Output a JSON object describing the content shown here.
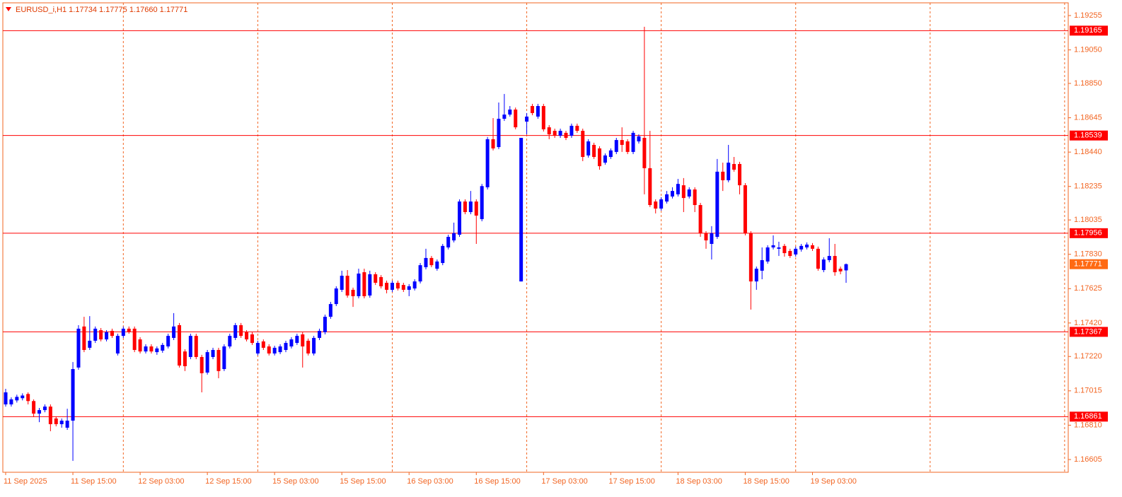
{
  "chart_data": {
    "type": "candlestick",
    "title": "EURUSD_i,H1  1.17734 1.17775 1.17660 1.17771",
    "categories": [
      "11 Sep 2025",
      null,
      null,
      null,
      null,
      null,
      null,
      null,
      null,
      null,
      null,
      null,
      "11 Sep 15:00",
      null,
      null,
      null,
      null,
      null,
      null,
      null,
      null,
      null,
      null,
      null,
      "12 Sep 03:00",
      null,
      null,
      null,
      null,
      null,
      null,
      null,
      null,
      null,
      null,
      null,
      "12 Sep 15:00",
      null,
      null,
      null,
      null,
      null,
      null,
      null,
      null,
      null,
      null,
      null,
      "15 Sep 03:00",
      null,
      null,
      null,
      null,
      null,
      null,
      null,
      null,
      null,
      null,
      null,
      "15 Sep 15:00",
      null,
      null,
      null,
      null,
      null,
      null,
      null,
      null,
      null,
      null,
      null,
      "16 Sep 03:00",
      null,
      null,
      null,
      null,
      null,
      null,
      null,
      null,
      null,
      null,
      null,
      "16 Sep 15:00",
      null,
      null,
      null,
      null,
      null,
      null,
      null,
      null,
      null,
      null,
      null,
      "17 Sep 03:00",
      null,
      null,
      null,
      null,
      null,
      null,
      null,
      null,
      null,
      null,
      null,
      "17 Sep 15:00",
      null,
      null,
      null,
      null,
      null,
      null,
      null,
      null,
      null,
      null,
      null,
      "18 Sep 03:00",
      null,
      null,
      null,
      null,
      null,
      null,
      null,
      null,
      null,
      null,
      null,
      "18 Sep 15:00",
      null,
      null,
      null,
      null,
      null,
      null,
      null,
      null,
      null,
      null,
      null,
      "19 Sep 03:00",
      null,
      null,
      null,
      null,
      null,
      null
    ],
    "open": [
      1.16934,
      1.16934,
      1.16958,
      1.16971,
      1.16996,
      1.16954,
      1.16879,
      1.169,
      1.16921,
      1.1685,
      1.16816,
      1.16795,
      1.16837,
      1.17154,
      1.17399,
      1.17272,
      1.17314,
      1.17377,
      1.17322,
      1.17373,
      1.17238,
      1.17343,
      1.17386,
      1.17386,
      1.17322,
      1.1725,
      1.1728,
      1.17246,
      1.17255,
      1.1728,
      1.17331,
      1.17407,
      1.1725,
      1.17217,
      1.17343,
      1.17217,
      1.17124,
      1.17217,
      1.17259,
      1.17145,
      1.1728,
      1.17331,
      1.17407,
      1.17365,
      1.17352,
      1.17238,
      1.1731,
      1.1728,
      1.17238,
      1.17246,
      1.17259,
      1.1728,
      1.17301,
      1.17352,
      1.17314,
      1.17238,
      1.17331,
      1.17365,
      1.17457,
      1.17533,
      1.17618,
      1.17702,
      1.17618,
      1.1758,
      1.17723,
      1.17584,
      1.17711,
      1.17694,
      1.1766,
      1.17618,
      1.1766,
      1.17647,
      1.17618,
      1.17626,
      1.17668,
      1.17753,
      1.17808,
      1.17744,
      1.17778,
      1.17871,
      1.17913,
      1.17947,
      1.18145,
      1.18082,
      1.18145,
      1.1804,
      1.1823,
      1.18517,
      1.1847,
      1.18639,
      1.18664,
      1.18694,
      1.17668,
      1.18622,
      1.18715,
      1.18652,
      1.18715,
      1.18588,
      1.18567,
      1.18538,
      1.18555,
      1.18538,
      1.18597,
      1.18567,
      1.1842,
      1.18483,
      1.18462,
      1.18377,
      1.18411,
      1.18441,
      1.18512,
      1.18504,
      1.18441,
      1.18504,
      1.18525,
      1.18344,
      1.18145,
      1.18103,
      1.18145,
      1.18175,
      1.18188,
      1.18242,
      1.18175,
      1.18217,
      1.18124,
      1.17956,
      1.17892,
      1.17934,
      1.18323,
      1.18272,
      1.18369,
      1.18369,
      1.18242,
      1.17956,
      1.17668,
      1.17732,
      1.17787,
      1.17871,
      1.17863,
      1.1788,
      1.1785,
      1.17829,
      1.17859,
      1.17871,
      1.17884,
      1.17863,
      1.17736,
      1.17795,
      1.1782,
      1.17744,
      1.17734
    ],
    "high": [
      1.17027,
      1.16976,
      1.16992,
      1.17,
      1.17006,
      1.16964,
      1.16913,
      1.16934,
      1.16934,
      1.16862,
      1.1685,
      1.16908,
      1.17187,
      1.17407,
      1.17457,
      1.17461,
      1.17399,
      1.1739,
      1.17377,
      1.17386,
      1.17356,
      1.17399,
      1.17399,
      1.17399,
      1.17335,
      1.17293,
      1.17293,
      1.1728,
      1.17301,
      1.17356,
      1.17479,
      1.1742,
      1.17263,
      1.17356,
      1.17356,
      1.1723,
      1.17259,
      1.17272,
      1.17272,
      1.17293,
      1.17356,
      1.1742,
      1.1742,
      1.17377,
      1.17365,
      1.17314,
      1.17322,
      1.17293,
      1.17284,
      1.17293,
      1.17314,
      1.17335,
      1.17356,
      1.17365,
      1.17327,
      1.17343,
      1.17386,
      1.1747,
      1.17546,
      1.17639,
      1.17732,
      1.17736,
      1.17631,
      1.17744,
      1.17744,
      1.17732,
      1.17723,
      1.17706,
      1.17673,
      1.17673,
      1.17673,
      1.1766,
      1.17652,
      1.17681,
      1.17778,
      1.17863,
      1.1782,
      1.17799,
      1.17892,
      1.17947,
      1.18019,
      1.18158,
      1.18158,
      1.18208,
      1.18158,
      1.1825,
      1.1853,
      1.18643,
      1.18736,
      1.18787,
      1.18715,
      1.18706,
      1.18525,
      1.18673,
      1.18728,
      1.18728,
      1.18728,
      1.18601,
      1.1858,
      1.1858,
      1.18567,
      1.1861,
      1.1861,
      1.1858,
      1.18517,
      1.18496,
      1.18475,
      1.18432,
      1.18462,
      1.18525,
      1.18588,
      1.18517,
      1.18567,
      1.18546,
      1.19188,
      1.18567,
      1.18158,
      1.18171,
      1.18208,
      1.1823,
      1.1828,
      1.18285,
      1.1823,
      1.1823,
      1.18137,
      1.17968,
      1.17998,
      1.18399,
      1.18377,
      1.18483,
      1.18411,
      1.18382,
      1.18255,
      1.17968,
      1.17757,
      1.17871,
      1.17884,
      1.17943,
      1.17905,
      1.17892,
      1.17863,
      1.17876,
      1.17892,
      1.17901,
      1.17897,
      1.17876,
      1.17812,
      1.17926,
      1.17892,
      1.17757,
      1.17775
    ],
    "low": [
      1.16921,
      1.16921,
      1.16945,
      1.16958,
      1.16934,
      1.16858,
      1.16828,
      1.16887,
      1.16774,
      1.16803,
      1.16795,
      1.16782,
      1.16597,
      1.17141,
      1.17246,
      1.17259,
      1.17301,
      1.1731,
      1.1731,
      1.17331,
      1.17226,
      1.17331,
      1.17356,
      1.17246,
      1.17238,
      1.17238,
      1.17238,
      1.1723,
      1.17242,
      1.17268,
      1.17318,
      1.17154,
      1.17133,
      1.17204,
      1.17204,
      1.17006,
      1.17112,
      1.17204,
      1.1709,
      1.17133,
      1.17268,
      1.17318,
      1.17331,
      1.1731,
      1.17289,
      1.17226,
      1.17259,
      1.17226,
      1.17226,
      1.17234,
      1.17246,
      1.17268,
      1.17289,
      1.17154,
      1.17226,
      1.17226,
      1.17318,
      1.17352,
      1.17445,
      1.17521,
      1.17605,
      1.17571,
      1.17516,
      1.17567,
      1.17567,
      1.17571,
      1.17647,
      1.17626,
      1.17597,
      1.17605,
      1.17614,
      1.17605,
      1.1758,
      1.17614,
      1.17656,
      1.1774,
      1.17753,
      1.17732,
      1.17765,
      1.17859,
      1.17901,
      1.17934,
      1.18069,
      1.18069,
      1.17892,
      1.18027,
      1.18217,
      1.1845,
      1.18458,
      1.18626,
      1.18652,
      1.18576,
      1.17668,
      1.18546,
      1.1866,
      1.18639,
      1.18563,
      1.18517,
      1.18525,
      1.18525,
      1.18512,
      1.18525,
      1.18555,
      1.18386,
      1.18407,
      1.18399,
      1.18335,
      1.18365,
      1.18399,
      1.18428,
      1.18441,
      1.18428,
      1.18428,
      1.18491,
      1.18188,
      1.18112,
      1.18074,
      1.18091,
      1.18133,
      1.18163,
      1.18175,
      1.18082,
      1.18163,
      1.18082,
      1.17934,
      1.17863,
      1.17799,
      1.17922,
      1.18208,
      1.1826,
      1.18323,
      1.18188,
      1.17943,
      1.175,
      1.17618,
      1.17681,
      1.17774,
      1.17859,
      1.1782,
      1.17816,
      1.17808,
      1.17816,
      1.17846,
      1.17859,
      1.1785,
      1.17732,
      1.17723,
      1.17782,
      1.17702,
      1.17711,
      1.1766
    ],
    "close": [
      1.17006,
      1.16964,
      1.16979,
      1.16987,
      1.16954,
      1.16879,
      1.169,
      1.16921,
      1.16816,
      1.16816,
      1.16837,
      1.16837,
      1.17145,
      1.17386,
      1.17259,
      1.17314,
      1.17386,
      1.17322,
      1.17365,
      1.17343,
      1.17343,
      1.17386,
      1.17365,
      1.17259,
      1.1725,
      1.1728,
      1.1725,
      1.17268,
      1.17289,
      1.17343,
      1.17399,
      1.17166,
      1.17162,
      1.17343,
      1.17217,
      1.1712,
      1.17246,
      1.17259,
      1.17133,
      1.1728,
      1.17343,
      1.17407,
      1.17343,
      1.17322,
      1.17301,
      1.17301,
      1.17272,
      1.17238,
      1.17272,
      1.1728,
      1.17301,
      1.17322,
      1.17343,
      1.1728,
      1.17238,
      1.17331,
      1.17373,
      1.17457,
      1.17533,
      1.17626,
      1.17702,
      1.17584,
      1.1758,
      1.17715,
      1.1758,
      1.17711,
      1.1766,
      1.17639,
      1.17618,
      1.1766,
      1.17626,
      1.17618,
      1.17639,
      1.17668,
      1.17765,
      1.17808,
      1.17765,
      1.17787,
      1.1788,
      1.17934,
      1.17956,
      1.18145,
      1.18082,
      1.18145,
      1.18061,
      1.18237,
      1.18517,
      1.18462,
      1.18639,
      1.18664,
      1.18694,
      1.18588,
      1.18525,
      1.18652,
      1.18673,
      1.18715,
      1.18576,
      1.18546,
      1.18538,
      1.18567,
      1.18525,
      1.18597,
      1.18567,
      1.18411,
      1.18504,
      1.18411,
      1.18356,
      1.1842,
      1.1845,
      1.18512,
      1.18483,
      1.18441,
      1.18555,
      1.18534,
      1.18344,
      1.18124,
      1.18103,
      1.18158,
      1.18188,
      1.18208,
      1.1825,
      1.18166,
      1.18217,
      1.18124,
      1.17956,
      1.17913,
      1.17956,
      1.18323,
      1.18272,
      1.18377,
      1.18335,
      1.18242,
      1.17956,
      1.17668,
      1.17744,
      1.17795,
      1.17871,
      1.17884,
      1.17871,
      1.17837,
      1.1782,
      1.17863,
      1.1788,
      1.17888,
      1.17863,
      1.17744,
      1.17799,
      1.1782,
      1.17723,
      1.17728,
      1.17771
    ],
    "up_color": "#0000ff",
    "down_color": "#ff0000",
    "ylim": [
      1.16529,
      1.19331
    ],
    "yticks": [
      1.19255,
      {
        "value": 1.1905,
        "label": "1.19050"
      },
      {
        "value": 1.1885,
        "label": "1.18850"
      },
      1.18645,
      {
        "value": 1.1844,
        "label": "1.18440"
      },
      1.18235,
      1.18035,
      {
        "value": 1.1783,
        "label": "1.17830"
      },
      1.17625,
      {
        "value": 1.1742,
        "label": "1.17420"
      },
      {
        "value": 1.1722,
        "label": "1.17220"
      },
      1.17015,
      {
        "value": 1.1681,
        "label": "1.16810"
      },
      1.16605
    ],
    "levels": [
      1.19165,
      1.18539,
      1.17956,
      1.17367,
      1.16861
    ],
    "level_color": "#ff0000",
    "current_price": 1.17771,
    "current_price_color": "#ff6a13",
    "axis_color": "#f26522",
    "grid_color": "#f26522"
  }
}
